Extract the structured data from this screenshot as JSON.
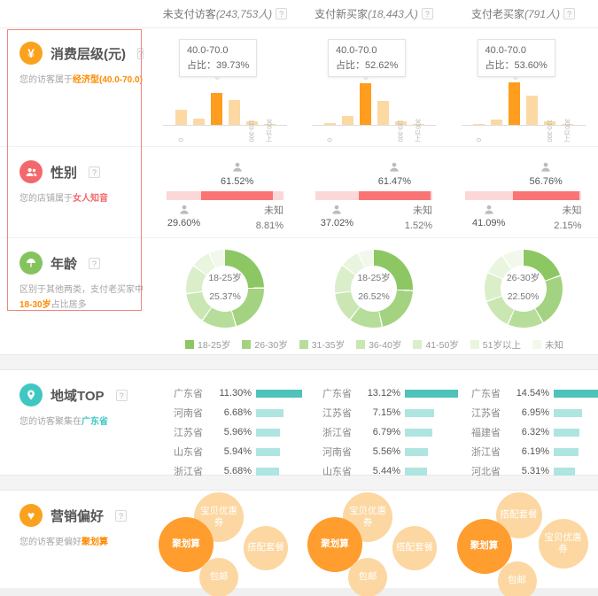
{
  "header": {
    "columns": [
      {
        "label": "未支付访客",
        "count": "(243,753人)",
        "help": "?"
      },
      {
        "label": "支付新买家",
        "count": "(18,443人)",
        "help": "?"
      },
      {
        "label": "支付老买家",
        "count": "(791人)",
        "help": "?"
      }
    ]
  },
  "sections": {
    "consumption": {
      "title": "消费层级(元)",
      "help": "?",
      "subtitle": {
        "prefix": "您的访客属于",
        "highlight": "经济型(40.0-70.0)"
      },
      "tooltip_prefix": "占比：",
      "axis_labels": [
        "0",
        "",
        "",
        "",
        "110-300",
        "300以上"
      ],
      "charts": [
        {
          "range": "40.0-70.0",
          "share": "39.73%",
          "bars": [
            19,
            8,
            39.73,
            31,
            4,
            1
          ],
          "highlight_index": 2
        },
        {
          "range": "40.0-70.0",
          "share": "52.62%",
          "bars": [
            2.5,
            11,
            52.62,
            30,
            4,
            1.5
          ],
          "highlight_index": 2
        },
        {
          "range": "40.0-70.0",
          "share": "53.60%",
          "bars": [
            1.5,
            7,
            53.6,
            37,
            5,
            1.5
          ],
          "highlight_index": 2
        }
      ]
    },
    "gender": {
      "title": "性别",
      "help": "?",
      "subtitle": {
        "prefix": "您的店铺属于",
        "highlight": "女人知音"
      },
      "unknown_label": "未知",
      "charts": [
        {
          "female": "61.52%",
          "male": "29.60%",
          "unknown": "8.81%"
        },
        {
          "female": "61.47%",
          "male": "37.02%",
          "unknown": "1.52%"
        },
        {
          "female": "56.76%",
          "male": "41.09%",
          "unknown": "2.15%"
        }
      ]
    },
    "age": {
      "title": "年龄",
      "help": "?",
      "subtitle": {
        "prefix": "区别于其他两类，支付老买家中",
        "highlight": "18-30岁",
        "suffix": "占比居多"
      },
      "legend": [
        "18-25岁",
        "26-30岁",
        "31-35岁",
        "36-40岁",
        "41-50岁",
        "51岁以上",
        "未知"
      ],
      "charts": [
        {
          "center_label": "18-25岁",
          "center_value": "25.37%",
          "slices": [
            25.37,
            21,
            14.5,
            13,
            12,
            8,
            6.13
          ],
          "highlight_index": 0
        },
        {
          "center_label": "18-25岁",
          "center_value": "26.52%",
          "slices": [
            26.52,
            21,
            14,
            12.5,
            12,
            8,
            5.98
          ],
          "highlight_index": 0
        },
        {
          "center_label": "26-30岁",
          "center_value": "22.50%",
          "slices": [
            20,
            22.5,
            15,
            13,
            12,
            9,
            8.5
          ],
          "highlight_index": 1
        }
      ]
    },
    "region": {
      "title": "地域TOP",
      "help": "?",
      "subtitle": {
        "prefix": "您的访客聚集在",
        "highlight": "广东省"
      },
      "charts": [
        {
          "rows": [
            {
              "name": "广东省",
              "value": "11.30%"
            },
            {
              "name": "河南省",
              "value": "6.68%"
            },
            {
              "name": "江苏省",
              "value": "5.96%"
            },
            {
              "name": "山东省",
              "value": "5.94%"
            },
            {
              "name": "浙江省",
              "value": "5.68%"
            }
          ]
        },
        {
          "rows": [
            {
              "name": "广东省",
              "value": "13.12%"
            },
            {
              "name": "江苏省",
              "value": "7.15%"
            },
            {
              "name": "浙江省",
              "value": "6.79%"
            },
            {
              "name": "河南省",
              "value": "5.56%"
            },
            {
              "name": "山东省",
              "value": "5.44%"
            }
          ]
        },
        {
          "rows": [
            {
              "name": "广东省",
              "value": "14.54%"
            },
            {
              "name": "江苏省",
              "value": "6.95%"
            },
            {
              "name": "福建省",
              "value": "6.32%"
            },
            {
              "name": "浙江省",
              "value": "6.19%"
            },
            {
              "name": "河北省",
              "value": "5.31%"
            }
          ]
        }
      ]
    },
    "marketing": {
      "title": "营销偏好",
      "help": "?",
      "subtitle": {
        "prefix": "您的访客更偏好",
        "highlight": "聚划算"
      },
      "charts": [
        {
          "bubbles": [
            {
              "label": "宝贝优惠券",
              "main": false,
              "x": 40,
              "y": 0,
              "d": 56
            },
            {
              "label": "聚划算",
              "main": true,
              "x": 0,
              "y": 28,
              "d": 62
            },
            {
              "label": "搭配套餐",
              "main": false,
              "x": 96,
              "y": 38,
              "d": 50
            },
            {
              "label": "包邮",
              "main": false,
              "x": 46,
              "y": 74,
              "d": 44
            }
          ]
        },
        {
          "bubbles": [
            {
              "label": "宝贝优惠券",
              "main": false,
              "x": 40,
              "y": 0,
              "d": 56
            },
            {
              "label": "聚划算",
              "main": true,
              "x": 0,
              "y": 28,
              "d": 62
            },
            {
              "label": "搭配套餐",
              "main": false,
              "x": 96,
              "y": 38,
              "d": 50
            },
            {
              "label": "包邮",
              "main": false,
              "x": 46,
              "y": 74,
              "d": 44
            }
          ]
        },
        {
          "bubbles": [
            {
              "label": "搭配套餐",
              "main": false,
              "x": 44,
              "y": 0,
              "d": 52
            },
            {
              "label": "聚划算",
              "main": true,
              "x": 0,
              "y": 30,
              "d": 62
            },
            {
              "label": "宝贝优惠券",
              "main": false,
              "x": 92,
              "y": 30,
              "d": 56
            },
            {
              "label": "包邮",
              "main": false,
              "x": 46,
              "y": 78,
              "d": 44
            }
          ]
        }
      ]
    }
  },
  "colors": {
    "hist_bar": "#fcd9a2",
    "hist_bar_highlight": "#ff9d1e",
    "gender_female": "#f97575",
    "gender_pale": "#fbd7d7",
    "region_bar_top": "#4fc2b9",
    "region_bar": "#aee5e1",
    "bubble_main": "#ff9d2e",
    "bubble_sub": "#fcd7a1",
    "donut_palette": [
      "#8cc763",
      "#a3d380",
      "#b7dd9b",
      "#c9e6b3",
      "#daeeca",
      "#e9f5df",
      "#f2f9ec"
    ],
    "sidebar_border": "#f0857c"
  }
}
